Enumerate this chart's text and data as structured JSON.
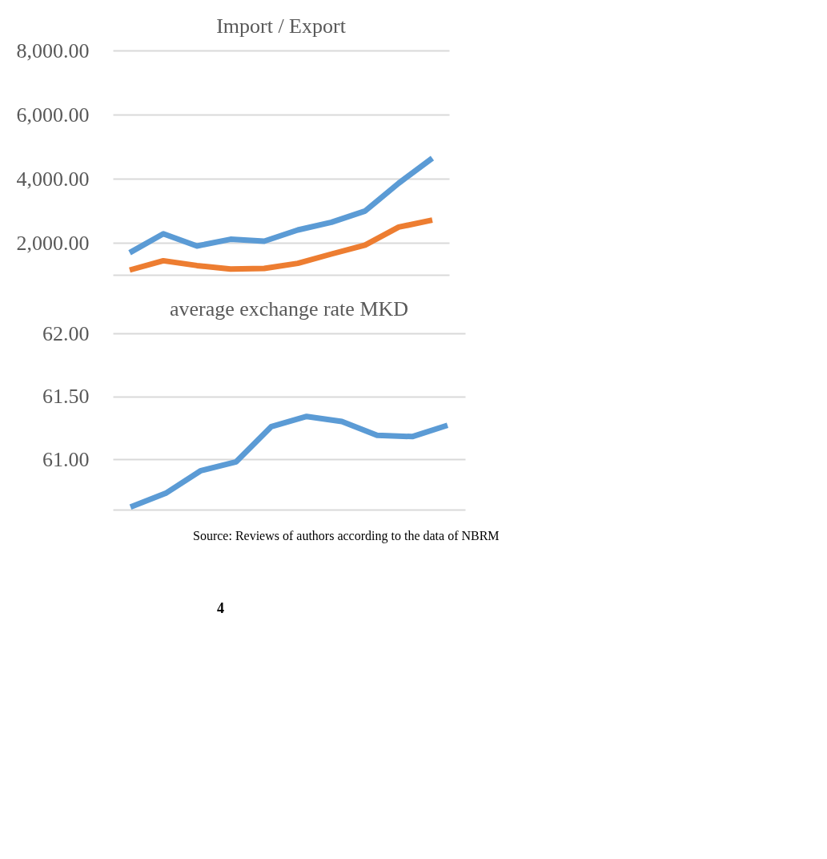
{
  "chart_data": [
    {
      "type": "line",
      "title": "Import / Export",
      "categories": [
        null,
        null,
        null,
        null,
        null,
        null,
        null,
        null,
        null,
        null
      ],
      "series": [
        {
          "color": "#5b9bd5",
          "values": [
            1690,
            2280,
            1900,
            2110,
            2050,
            2400,
            2640,
            2990,
            3860,
            4640
          ]
        },
        {
          "color": "#ed7d31",
          "values": [
            1150,
            1440,
            1290,
            1180,
            1200,
            1360,
            1650,
            1930,
            2490,
            2710
          ]
        }
      ],
      "ylim": [
        1000,
        8000
      ],
      "yticks": [
        {
          "value": 2000,
          "label": "2,000.00"
        },
        {
          "value": 4000,
          "label": "4,000.00"
        },
        {
          "value": 6000,
          "label": "6,000.00"
        },
        {
          "value": 8000,
          "label": "8,000.00"
        }
      ],
      "grid": "y",
      "marker": "none",
      "tick_labels": "y"
    },
    {
      "type": "line",
      "title": "average exchange rate MKD",
      "categories": [
        null,
        null,
        null,
        null,
        null,
        null,
        null,
        null,
        null,
        null
      ],
      "series": [
        {
          "color": "#5b9bd5",
          "values": [
            60.62,
            60.73,
            60.91,
            60.98,
            61.26,
            61.34,
            61.3,
            61.19,
            61.18,
            61.27
          ]
        }
      ],
      "ylim": [
        60.6,
        62.0
      ],
      "yticks": [
        {
          "value": 61.0,
          "label": "61.00"
        },
        {
          "value": 61.5,
          "label": "61.50"
        },
        {
          "value": 62.0,
          "label": "62.00"
        }
      ],
      "grid": "y",
      "marker": "none",
      "tick_labels": "y",
      "annotations": [
        "Source: Reviews of authors according to the data of NBRM",
        "4"
      ]
    }
  ]
}
